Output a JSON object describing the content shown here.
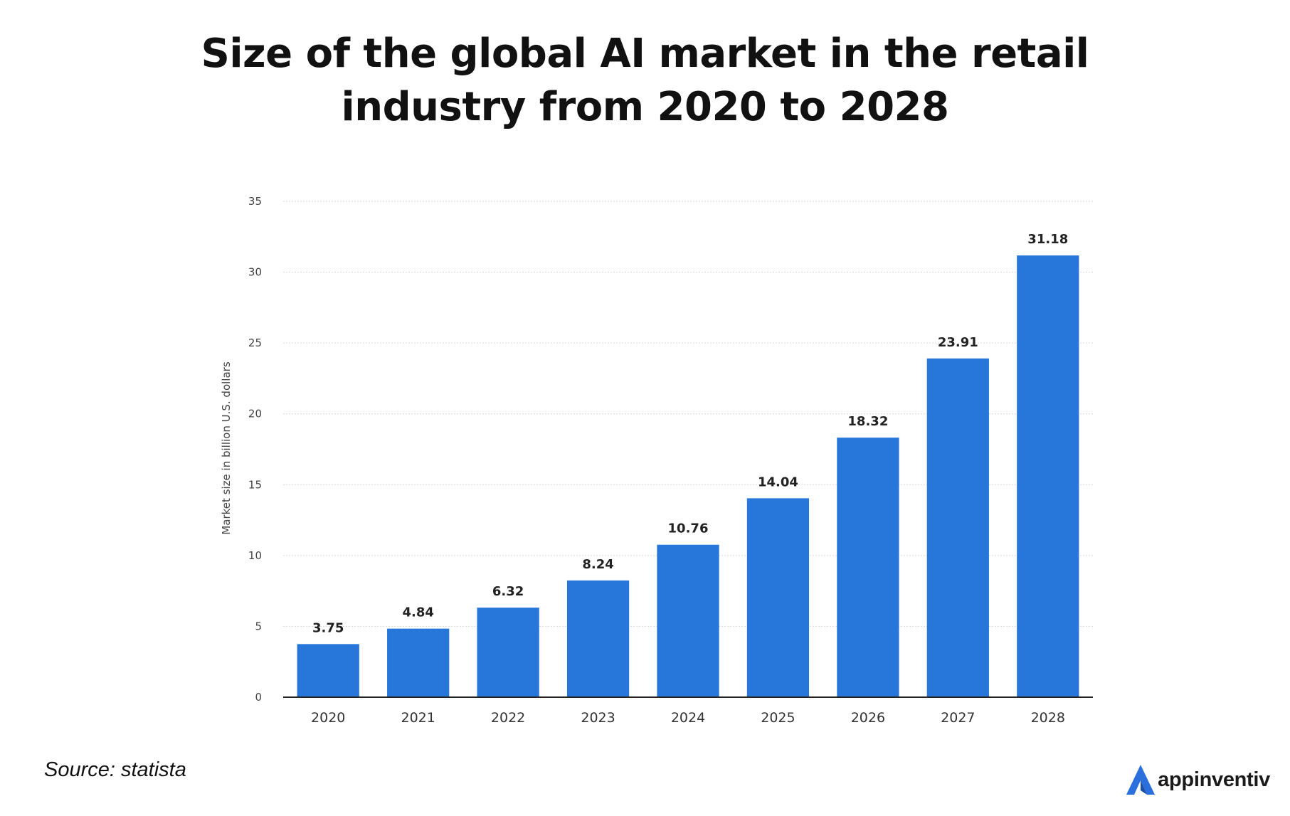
{
  "title": {
    "line1": "Size of the global AI market in the retail",
    "line2": "industry from 2020 to 2028"
  },
  "source": "Source: statista",
  "brand": {
    "name": "appinventiv",
    "icon": "appinventiv-logo-icon",
    "color": "#2a6fdb"
  },
  "chart_data": {
    "type": "bar",
    "title": "Size of the global AI market in the retail industry from 2020 to 2028",
    "categories": [
      "2020",
      "2021",
      "2022",
      "2023",
      "2024",
      "2025",
      "2026",
      "2027",
      "2028"
    ],
    "values": [
      3.75,
      4.84,
      6.32,
      8.24,
      10.76,
      14.04,
      18.32,
      23.91,
      31.18
    ],
    "value_labels": [
      "3.75",
      "4.84",
      "6.32",
      "8.24",
      "10.76",
      "14.04",
      "18.32",
      "23.91",
      "31.18"
    ],
    "xlabel": "",
    "ylabel": "Market size in billion U.S. dollars",
    "ylim": [
      0,
      35
    ],
    "yticks": [
      "0",
      "5",
      "10",
      "15",
      "20",
      "25",
      "30",
      "35"
    ],
    "grid": true,
    "bar_color": "#2776da"
  }
}
